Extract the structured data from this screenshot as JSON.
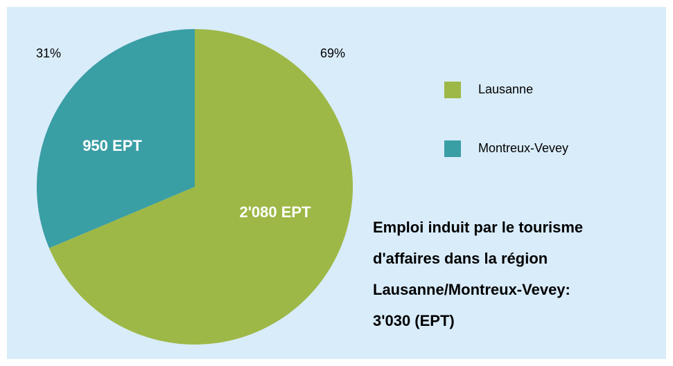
{
  "chart_data": {
    "type": "pie",
    "categories": [
      "Lausanne",
      "Montreux-Vevey"
    ],
    "values": [
      2080,
      950
    ],
    "value_labels": [
      "2'080 EPT",
      "950 EPT"
    ],
    "percentages": [
      69,
      31
    ],
    "percentage_labels": [
      "69%",
      "31%"
    ],
    "colors": [
      "#9db846",
      "#3a9ea5"
    ],
    "annotation": [
      "Emploi induit par le tourisme",
      "d'affaires dans la région",
      "Lausanne/Montreux-Vevey:",
      "3'030 (EPT)"
    ]
  }
}
